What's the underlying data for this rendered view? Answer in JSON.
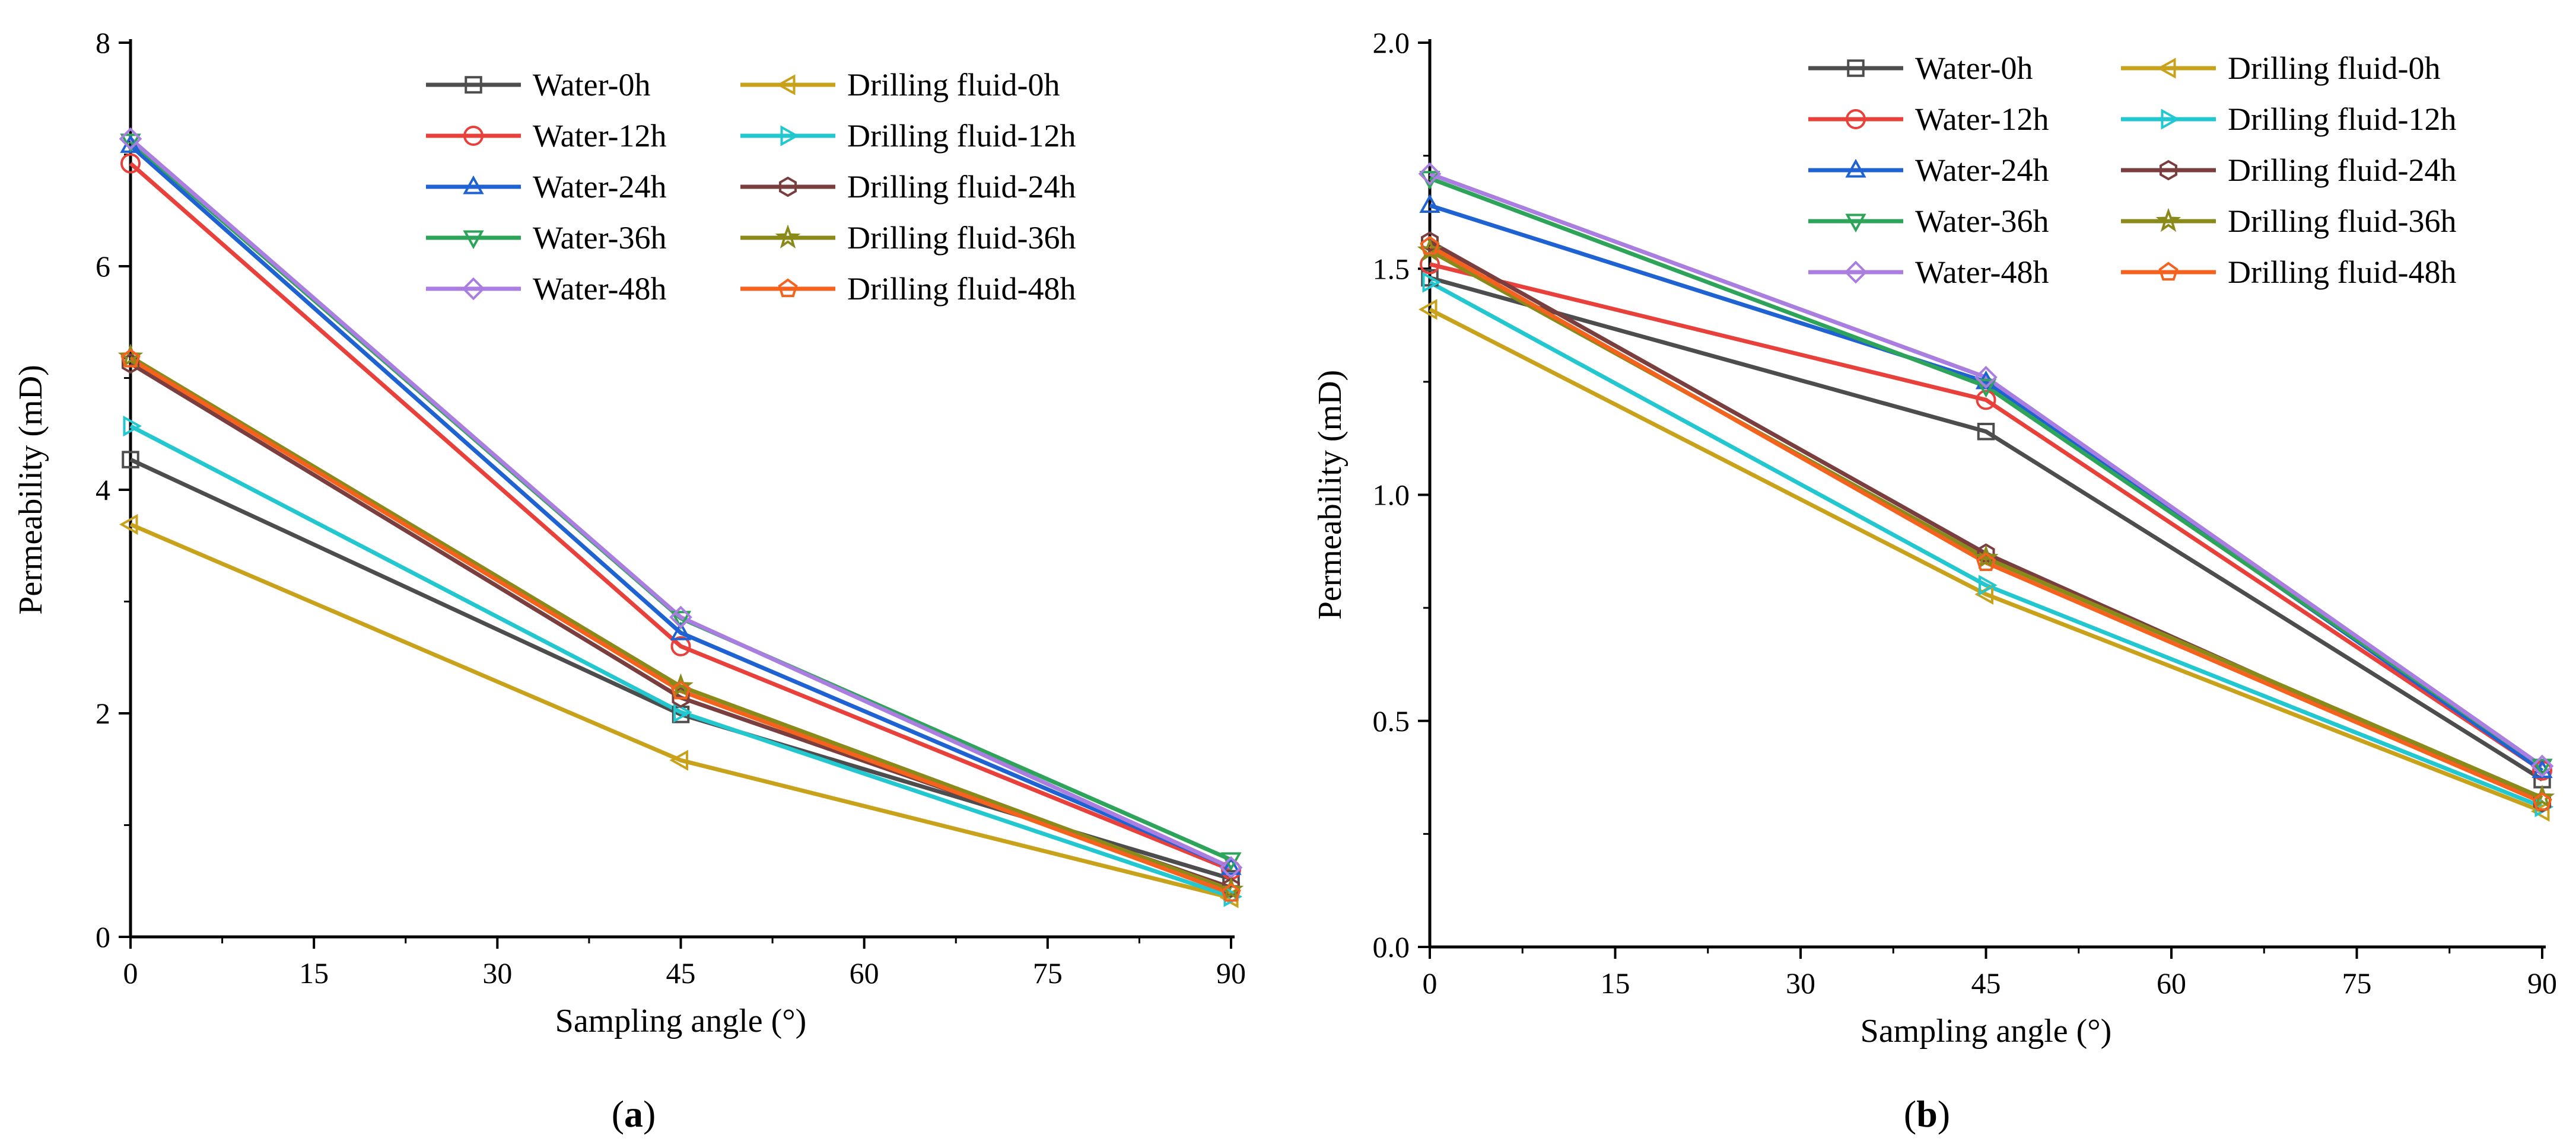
{
  "figure": {
    "panels": [
      {
        "label_open": "(",
        "label_letter": "a",
        "label_close": ")"
      },
      {
        "label_open": "(",
        "label_letter": "b",
        "label_close": ")"
      }
    ]
  },
  "chart_data": [
    {
      "type": "line",
      "panel": "a",
      "title": "",
      "xlabel": "Sampling angle (°)",
      "ylabel": "Permeability (mD)",
      "xlim": [
        0,
        90
      ],
      "ylim": [
        0,
        8
      ],
      "xticks": [
        0,
        15,
        30,
        45,
        60,
        75,
        90
      ],
      "yticks": [
        0,
        2,
        4,
        6,
        8
      ],
      "ytick_labels": [
        "0",
        "2",
        "4",
        "6",
        "8"
      ],
      "legend_position": "top-right",
      "x": [
        0,
        45,
        90
      ],
      "series": [
        {
          "name": "Water-0h",
          "color": "#4d4d4d",
          "marker": "square",
          "values": [
            4.27,
            1.99,
            0.52
          ]
        },
        {
          "name": "Water-12h",
          "color": "#e8403a",
          "marker": "circle",
          "values": [
            6.92,
            2.6,
            0.6
          ]
        },
        {
          "name": "Water-24h",
          "color": "#1f62d2",
          "marker": "triangle-up",
          "values": [
            7.08,
            2.72,
            0.62
          ]
        },
        {
          "name": "Water-36h",
          "color": "#2ea45a",
          "marker": "triangle-down",
          "values": [
            7.12,
            2.85,
            0.69
          ]
        },
        {
          "name": "Water-48h",
          "color": "#a97ee0",
          "marker": "diamond",
          "values": [
            7.14,
            2.86,
            0.62
          ]
        },
        {
          "name": "Drilling fluid-0h",
          "color": "#c9a21c",
          "marker": "triangle-left",
          "values": [
            3.69,
            1.58,
            0.35
          ]
        },
        {
          "name": "Drilling fluid-12h",
          "color": "#22c7cf",
          "marker": "triangle-right",
          "values": [
            4.57,
            2.01,
            0.36
          ]
        },
        {
          "name": "Drilling fluid-24h",
          "color": "#7a3e3e",
          "marker": "hexagon",
          "values": [
            5.13,
            2.14,
            0.44
          ]
        },
        {
          "name": "Drilling fluid-36h",
          "color": "#8a8a1a",
          "marker": "star",
          "values": [
            5.19,
            2.24,
            0.42
          ]
        },
        {
          "name": "Drilling fluid-48h",
          "color": "#f4621e",
          "marker": "pentagon",
          "values": [
            5.17,
            2.2,
            0.39
          ]
        }
      ]
    },
    {
      "type": "line",
      "panel": "b",
      "title": "",
      "xlabel": "Sampling angle (°)",
      "ylabel": "Permeability (mD)",
      "xlim": [
        0,
        90
      ],
      "ylim": [
        0,
        2
      ],
      "xticks": [
        0,
        15,
        30,
        45,
        60,
        75,
        90
      ],
      "yticks": [
        0,
        0.5,
        1,
        1.5,
        2
      ],
      "ytick_labels": [
        "0.0",
        "0.5",
        "1.0",
        "1.5",
        "2.0"
      ],
      "legend_position": "top-right",
      "x": [
        0,
        45,
        90
      ],
      "series": [
        {
          "name": "Water-0h",
          "color": "#4d4d4d",
          "marker": "square",
          "values": [
            1.48,
            1.14,
            0.37
          ]
        },
        {
          "name": "Water-12h",
          "color": "#e8403a",
          "marker": "circle",
          "values": [
            1.51,
            1.21,
            0.39
          ]
        },
        {
          "name": "Water-24h",
          "color": "#1f62d2",
          "marker": "triangle-up",
          "values": [
            1.64,
            1.25,
            0.39
          ]
        },
        {
          "name": "Water-36h",
          "color": "#2ea45a",
          "marker": "triangle-down",
          "values": [
            1.7,
            1.24,
            0.4
          ]
        },
        {
          "name": "Water-48h",
          "color": "#a97ee0",
          "marker": "diamond",
          "values": [
            1.71,
            1.26,
            0.4
          ]
        },
        {
          "name": "Drilling fluid-0h",
          "color": "#c9a21c",
          "marker": "triangle-left",
          "values": [
            1.41,
            0.78,
            0.3
          ]
        },
        {
          "name": "Drilling fluid-12h",
          "color": "#22c7cf",
          "marker": "triangle-right",
          "values": [
            1.47,
            0.8,
            0.31
          ]
        },
        {
          "name": "Drilling fluid-24h",
          "color": "#7a3e3e",
          "marker": "hexagon",
          "values": [
            1.56,
            0.87,
            0.32
          ]
        },
        {
          "name": "Drilling fluid-36h",
          "color": "#8a8a1a",
          "marker": "star",
          "values": [
            1.54,
            0.86,
            0.33
          ]
        },
        {
          "name": "Drilling fluid-48h",
          "color": "#f4621e",
          "marker": "pentagon",
          "values": [
            1.55,
            0.85,
            0.32
          ]
        }
      ]
    }
  ]
}
